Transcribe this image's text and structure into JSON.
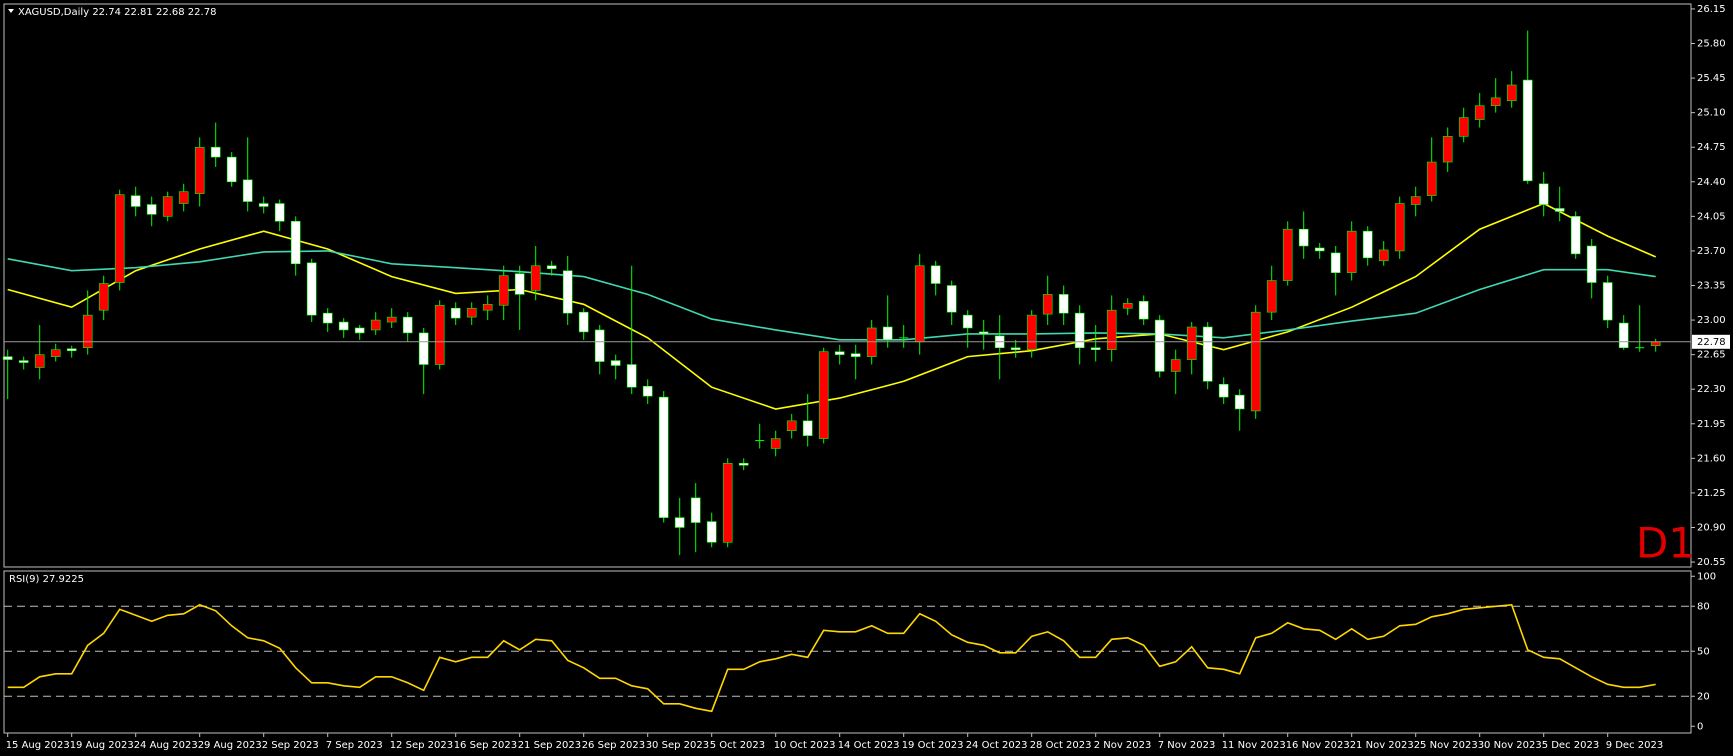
{
  "chart_data": [
    {
      "type": "candlestick",
      "title": "XAGUSD,Daily",
      "annotation": "D1",
      "up_color": "#ff0000",
      "down_color": "#ffffff",
      "wick_color": "#00ff00",
      "price_line_color": "#9a9a9a",
      "categories": [
        "15 Aug 2023",
        null,
        null,
        null,
        "19 Aug 2023",
        null,
        null,
        null,
        "24 Aug 2023",
        null,
        null,
        null,
        "29 Aug 2023",
        null,
        null,
        null,
        "2 Sep 2023",
        null,
        null,
        null,
        "7 Sep 2023",
        null,
        null,
        null,
        "12 Sep 2023",
        null,
        null,
        null,
        "16 Sep 2023",
        null,
        null,
        null,
        "21 Sep 2023",
        null,
        null,
        null,
        "26 Sep 2023",
        null,
        null,
        null,
        "30 Sep 2023",
        null,
        null,
        null,
        "5 Oct 2023",
        null,
        null,
        null,
        "10 Oct 2023",
        null,
        null,
        null,
        "14 Oct 2023",
        null,
        null,
        null,
        "19 Oct 2023",
        null,
        null,
        null,
        "24 Oct 2023",
        null,
        null,
        null,
        "28 Oct 2023",
        null,
        null,
        null,
        "2 Nov 2023",
        null,
        null,
        null,
        "7 Nov 2023",
        null,
        null,
        null,
        "11 Nov 2023",
        null,
        null,
        null,
        "16 Nov 2023",
        null,
        null,
        null,
        "21 Nov 2023",
        null,
        null,
        null,
        "25 Nov 2023",
        null,
        null,
        null,
        "30 Nov 2023",
        null,
        null,
        null,
        "5 Dec 2023",
        null,
        null,
        null,
        "9 Dec 2023",
        null,
        null,
        null
      ],
      "open": [
        22.63,
        22.59,
        22.52,
        22.63,
        22.71,
        22.72,
        23.1,
        23.38,
        24.26,
        24.17,
        24.05,
        24.18,
        24.28,
        24.75,
        24.65,
        24.42,
        24.18,
        24.18,
        24.0,
        23.58,
        23.07,
        22.98,
        22.92,
        22.9,
        22.98,
        23.03,
        22.87,
        22.55,
        23.12,
        23.03,
        23.1,
        23.15,
        23.47,
        23.3,
        23.55,
        23.5,
        23.08,
        22.9,
        22.59,
        22.55,
        22.33,
        22.22,
        21.0,
        21.2,
        20.96,
        20.75,
        21.55,
        21.78,
        21.7,
        21.88,
        21.98,
        21.8,
        22.68,
        22.66,
        22.63,
        22.93,
        22.82,
        22.78,
        23.55,
        23.35,
        23.05,
        22.88,
        22.84,
        22.72,
        22.7,
        23.06,
        23.26,
        23.07,
        22.72,
        22.7,
        23.12,
        23.19,
        23.0,
        22.48,
        22.6,
        22.93,
        22.35,
        22.24,
        22.08,
        23.08,
        23.4,
        23.92,
        23.73,
        23.68,
        23.48,
        23.9,
        23.6,
        23.7,
        24.17,
        24.26,
        24.6,
        24.86,
        25.03,
        25.17,
        25.22,
        25.43,
        24.38,
        24.13,
        24.05,
        23.75,
        23.38,
        22.97,
        22.71,
        22.74
      ],
      "high": [
        22.7,
        22.63,
        22.95,
        22.76,
        22.74,
        23.3,
        23.45,
        24.32,
        24.35,
        24.25,
        24.3,
        24.38,
        24.85,
        25.0,
        24.7,
        24.85,
        24.25,
        24.22,
        24.05,
        23.62,
        23.12,
        23.02,
        22.95,
        23.08,
        23.12,
        23.08,
        22.92,
        23.2,
        23.18,
        23.18,
        23.25,
        23.55,
        23.55,
        23.75,
        23.6,
        23.65,
        23.12,
        22.95,
        22.65,
        23.55,
        22.4,
        22.28,
        21.2,
        21.35,
        21.05,
        21.6,
        21.6,
        21.95,
        21.88,
        22.05,
        22.25,
        22.72,
        22.75,
        22.75,
        23.0,
        23.25,
        22.95,
        23.67,
        23.6,
        23.4,
        23.1,
        23.0,
        23.05,
        22.8,
        23.1,
        23.45,
        23.35,
        23.15,
        22.95,
        23.25,
        23.22,
        23.25,
        23.05,
        22.7,
        22.98,
        22.98,
        22.42,
        22.3,
        23.15,
        23.55,
        24.0,
        24.1,
        23.78,
        23.75,
        24.0,
        23.95,
        23.8,
        24.25,
        24.35,
        24.85,
        24.95,
        25.15,
        25.3,
        25.45,
        25.52,
        25.93,
        24.5,
        24.35,
        24.1,
        23.82,
        23.45,
        23.05,
        23.15,
        22.81
      ],
      "low": [
        22.2,
        22.5,
        22.4,
        22.58,
        22.62,
        22.65,
        23.0,
        23.3,
        24.05,
        23.95,
        24.0,
        24.1,
        24.15,
        24.55,
        24.35,
        24.1,
        24.08,
        23.9,
        23.45,
        22.98,
        22.88,
        22.82,
        22.8,
        22.85,
        22.92,
        22.78,
        22.25,
        22.5,
        22.95,
        22.95,
        23.0,
        23.0,
        22.9,
        23.2,
        23.45,
        22.95,
        22.8,
        22.45,
        22.4,
        22.25,
        22.15,
        20.95,
        20.62,
        20.65,
        20.7,
        20.7,
        21.48,
        21.7,
        21.62,
        21.8,
        21.72,
        21.75,
        22.55,
        22.4,
        22.55,
        22.72,
        22.72,
        22.65,
        23.25,
        22.95,
        22.72,
        22.7,
        22.4,
        22.62,
        22.62,
        22.95,
        22.95,
        22.55,
        22.58,
        22.58,
        23.05,
        22.95,
        22.42,
        22.25,
        22.45,
        22.3,
        22.15,
        21.88,
        22.0,
        23.0,
        23.35,
        23.62,
        23.62,
        23.25,
        23.4,
        23.55,
        23.55,
        23.62,
        24.05,
        24.2,
        24.5,
        24.8,
        24.95,
        25.1,
        25.15,
        24.38,
        24.05,
        24.0,
        23.62,
        23.22,
        22.92,
        22.7,
        22.68,
        22.68
      ],
      "close": [
        22.6,
        22.57,
        22.65,
        22.7,
        22.69,
        23.05,
        23.37,
        24.27,
        24.15,
        24.07,
        24.25,
        24.3,
        24.75,
        24.65,
        24.4,
        24.2,
        24.15,
        24.0,
        23.57,
        23.05,
        22.97,
        22.9,
        22.87,
        23.0,
        23.03,
        22.87,
        22.55,
        23.15,
        23.02,
        23.12,
        23.16,
        23.45,
        23.26,
        23.55,
        23.52,
        23.07,
        22.88,
        22.58,
        22.54,
        22.32,
        22.23,
        21.0,
        20.9,
        20.95,
        20.75,
        21.55,
        21.53,
        21.78,
        21.8,
        21.98,
        21.83,
        22.68,
        22.65,
        22.63,
        22.92,
        22.8,
        22.82,
        23.55,
        23.37,
        23.08,
        22.92,
        22.86,
        22.72,
        22.7,
        23.05,
        23.26,
        23.07,
        22.72,
        22.7,
        23.1,
        23.17,
        23.01,
        22.48,
        22.6,
        22.93,
        22.38,
        22.22,
        22.1,
        23.08,
        23.4,
        23.92,
        23.75,
        23.7,
        23.48,
        23.9,
        23.63,
        23.71,
        24.18,
        24.25,
        24.6,
        24.86,
        25.05,
        25.17,
        25.25,
        25.38,
        24.41,
        24.17,
        24.1,
        23.67,
        23.38,
        23.0,
        22.72,
        22.72,
        22.78
      ],
      "series": [
        {
          "color": "#ffff00",
          "x": [
            0,
            4,
            8,
            12,
            16,
            20,
            24,
            28,
            32,
            36,
            40,
            44,
            48,
            52,
            56,
            60,
            64,
            68,
            72,
            76,
            80,
            84,
            88,
            92,
            96,
            100,
            103
          ],
          "values": [
            23.31,
            23.13,
            23.5,
            23.72,
            23.9,
            23.72,
            23.44,
            23.27,
            23.31,
            23.16,
            22.82,
            22.32,
            22.1,
            22.21,
            22.38,
            22.63,
            22.69,
            22.81,
            22.86,
            22.7,
            22.88,
            23.13,
            23.44,
            23.92,
            24.18,
            23.85,
            23.64
          ]
        },
        {
          "color": "#3fd8b0",
          "x": [
            0,
            4,
            8,
            12,
            16,
            20,
            24,
            28,
            32,
            36,
            40,
            44,
            48,
            52,
            56,
            60,
            64,
            68,
            72,
            76,
            80,
            84,
            88,
            92,
            96,
            100,
            103
          ],
          "values": [
            23.62,
            23.5,
            23.53,
            23.59,
            23.69,
            23.7,
            23.57,
            23.53,
            23.49,
            23.44,
            23.26,
            23.01,
            22.9,
            22.8,
            22.8,
            22.86,
            22.86,
            22.87,
            22.86,
            22.82,
            22.9,
            22.99,
            23.07,
            23.31,
            23.51,
            23.51,
            23.44
          ]
        }
      ],
      "ylim": [
        20.5,
        26.2
      ],
      "yticks": [
        26.15,
        {
          "value": 25.8,
          "label": "25.80"
        },
        25.45,
        {
          "value": 25.1,
          "label": "25.10"
        },
        24.75,
        {
          "value": 24.4,
          "label": "24.40"
        },
        24.05,
        {
          "value": 23.7,
          "label": "23.70"
        },
        23.35,
        {
          "value": 23,
          "label": "23.00"
        },
        22.65,
        {
          "value": 22.3,
          "label": "22.30"
        },
        21.95,
        {
          "value": 21.6,
          "label": "21.60"
        },
        21.25,
        {
          "value": 20.9,
          "label": "20.90"
        },
        20.55
      ]
    },
    {
      "type": "line",
      "title": "RSI(9)",
      "color": "#ffd700",
      "values": [
        26,
        26,
        33,
        35,
        35,
        54,
        62,
        78,
        74,
        70,
        74,
        75,
        81,
        77,
        67,
        59,
        57,
        52,
        39,
        29,
        29,
        27,
        26,
        33,
        33,
        29,
        24,
        46,
        43,
        46,
        46,
        57,
        51,
        58,
        57,
        44,
        39,
        32,
        32,
        27,
        25,
        15,
        15,
        12,
        10,
        38,
        38,
        43,
        45,
        48,
        46,
        64,
        63,
        63,
        67,
        62,
        62,
        75,
        70,
        61,
        56,
        54,
        49,
        49,
        60,
        63,
        57,
        46,
        46,
        58,
        59,
        54,
        40,
        43,
        53,
        39,
        38,
        35,
        59,
        62,
        69,
        65,
        64,
        58,
        65,
        58,
        60,
        67,
        68,
        73,
        75,
        78,
        79,
        80,
        81,
        51,
        46,
        45,
        39,
        33,
        28,
        26,
        26,
        27.9225
      ],
      "ylim": [
        -4.5,
        103.5
      ],
      "yticks": [
        100,
        80,
        50,
        20,
        0
      ]
    }
  ]
}
